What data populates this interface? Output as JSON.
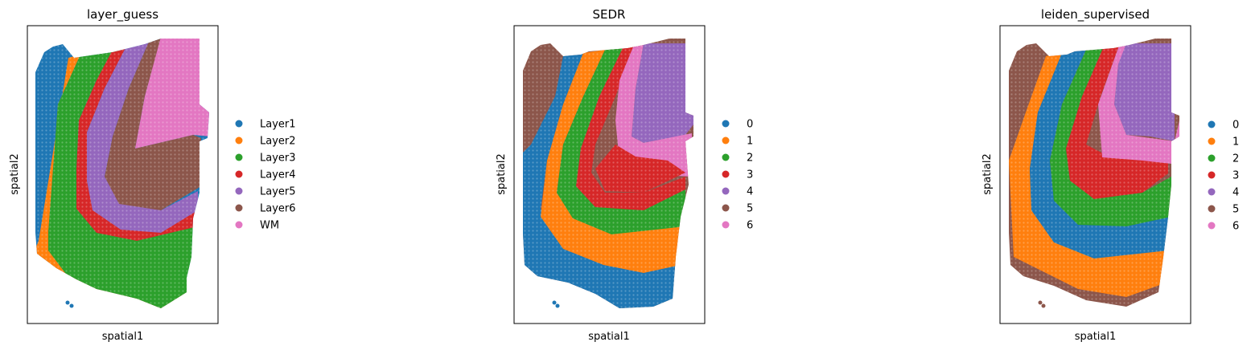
{
  "figure": {
    "background": "#ffffff"
  },
  "chart_data": [
    {
      "type": "scatter",
      "title": "layer_guess",
      "xlabel": "spatial1",
      "ylabel": "spatial2",
      "xticks": false,
      "yticks": false,
      "grid": false,
      "legend_position": "right",
      "legend": [
        {
          "label": "Layer1",
          "color": "#1f77b4"
        },
        {
          "label": "Layer2",
          "color": "#ff7f0e"
        },
        {
          "label": "Layer3",
          "color": "#2ca02c"
        },
        {
          "label": "Layer4",
          "color": "#d62728"
        },
        {
          "label": "Layer5",
          "color": "#9467bd"
        },
        {
          "label": "Layer6",
          "color": "#8c564b"
        },
        {
          "label": "WM",
          "color": "#e377c2"
        }
      ]
    },
    {
      "type": "scatter",
      "title": "SEDR",
      "xlabel": "spatial1",
      "ylabel": "spatial2",
      "xticks": false,
      "yticks": false,
      "grid": false,
      "legend_position": "right",
      "legend": [
        {
          "label": "0",
          "color": "#1f77b4"
        },
        {
          "label": "1",
          "color": "#ff7f0e"
        },
        {
          "label": "2",
          "color": "#2ca02c"
        },
        {
          "label": "3",
          "color": "#d62728"
        },
        {
          "label": "4",
          "color": "#9467bd"
        },
        {
          "label": "5",
          "color": "#8c564b"
        },
        {
          "label": "6",
          "color": "#e377c2"
        }
      ]
    },
    {
      "type": "scatter",
      "title": "leiden_supervised",
      "xlabel": "spatial1",
      "ylabel": "spatial2",
      "xticks": false,
      "yticks": false,
      "grid": false,
      "legend_position": "right",
      "legend": [
        {
          "label": "0",
          "color": "#1f77b4"
        },
        {
          "label": "1",
          "color": "#ff7f0e"
        },
        {
          "label": "2",
          "color": "#2ca02c"
        },
        {
          "label": "3",
          "color": "#d62728"
        },
        {
          "label": "4",
          "color": "#9467bd"
        },
        {
          "label": "5",
          "color": "#8c564b"
        },
        {
          "label": "6",
          "color": "#e377c2"
        }
      ]
    }
  ]
}
